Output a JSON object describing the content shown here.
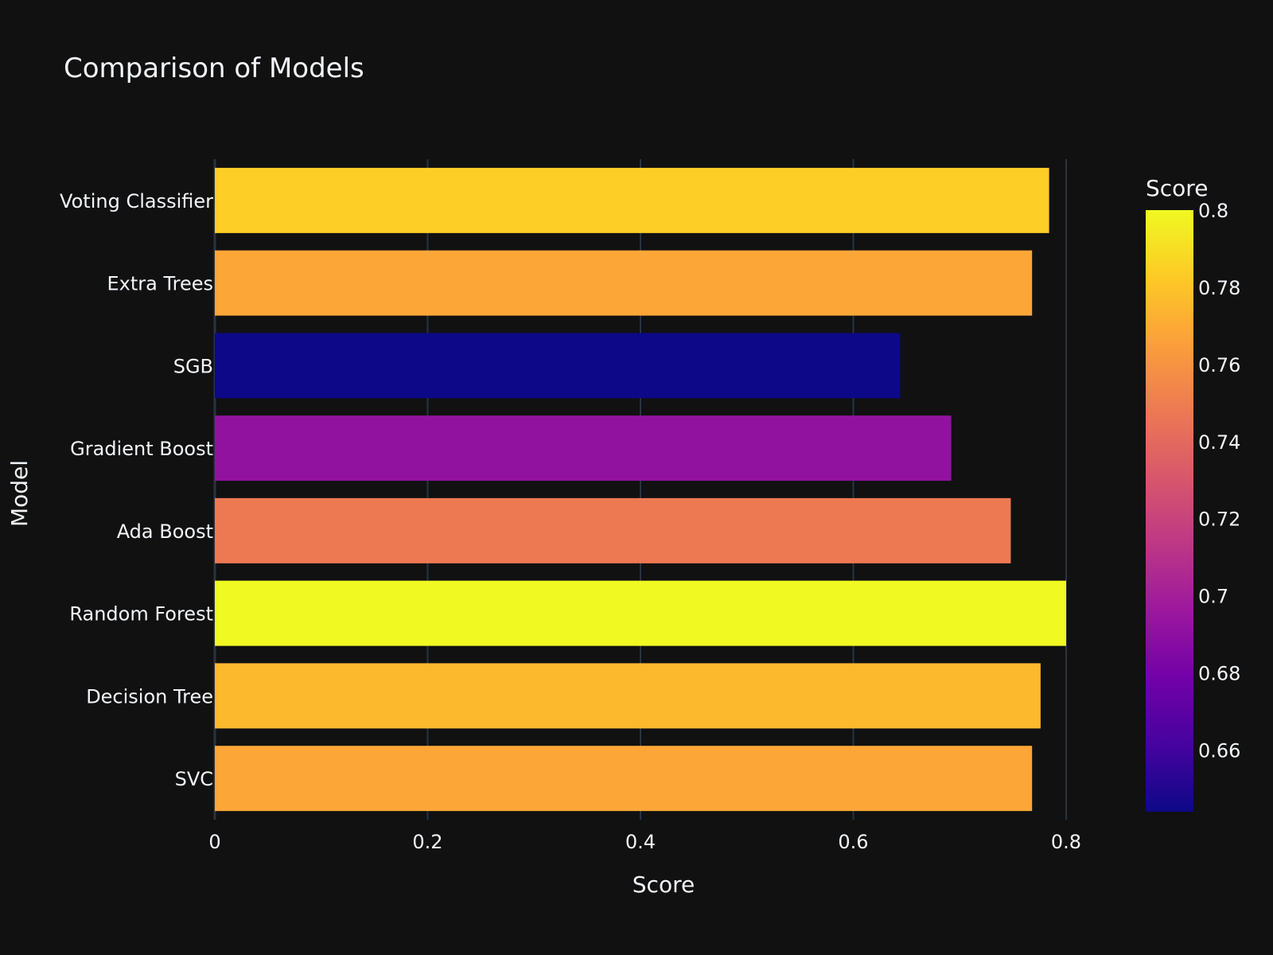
{
  "chart_data": {
    "type": "bar",
    "orientation": "horizontal",
    "title": "Comparison of Models",
    "xlabel": "Score",
    "ylabel": "Model",
    "categories": [
      "Voting Classifier",
      "Extra Trees",
      "SGB",
      "Gradient Boost",
      "Ada Boost",
      "Random Forest",
      "Decision Tree",
      "SVC"
    ],
    "values": [
      0.784,
      0.768,
      0.644,
      0.692,
      0.748,
      0.8,
      0.776,
      0.768
    ],
    "xlim": [
      0,
      0.8
    ],
    "xticks": [
      "0",
      "0.2",
      "0.4",
      "0.6",
      "0.8"
    ],
    "grid": true,
    "colorbar": {
      "title": "Score",
      "colorscale": "Plasma",
      "range": [
        0.644,
        0.8
      ],
      "ticks": [
        "0.8",
        "0.78",
        "0.76",
        "0.74",
        "0.72",
        "0.7",
        "0.68",
        "0.66"
      ]
    },
    "colors": {
      "background": "#111111",
      "grid": "#283442",
      "text": "#f2f5fa"
    }
  }
}
